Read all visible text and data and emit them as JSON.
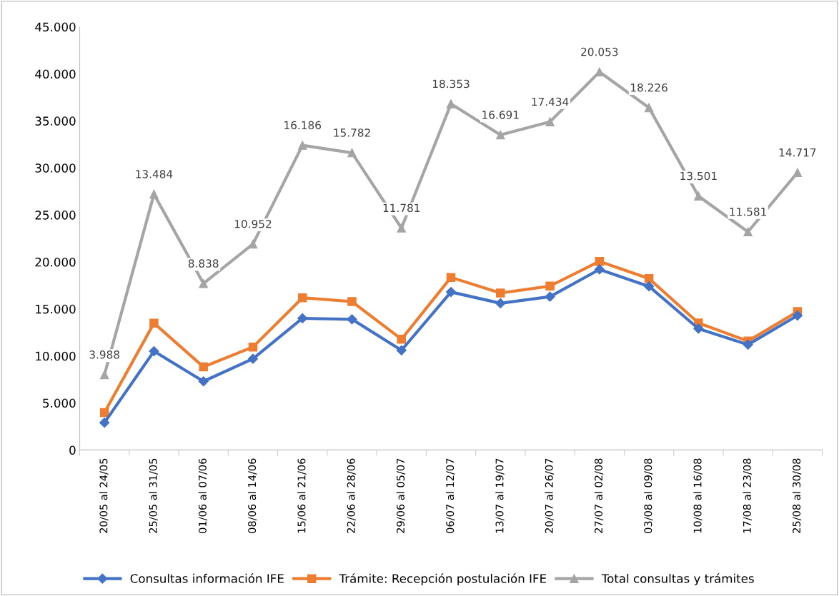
{
  "chart_data": {
    "type": "line",
    "categories": [
      "20/05 al 24/05",
      "25/05 al 31/05",
      "01/06 al 07/06",
      "08/06 al 14/06",
      "15/06 al 21/06",
      "22/06 al 28/06",
      "29/06 al 05/07",
      "06/07 al 12/07",
      "13/07 al 19/07",
      "20/07 al 26/07",
      "27/07 al 02/08",
      "03/08 al 09/08",
      "10/08 al 16/08",
      "17/08 al 23/08",
      "25/08 al 30/08"
    ],
    "series": [
      {
        "name": "Consultas información IFE",
        "color": "#4472c4",
        "marker": "diamond",
        "values": [
          2900,
          10500,
          7300,
          9700,
          14000,
          13900,
          10600,
          16800,
          15600,
          16300,
          19200,
          17400,
          12900,
          11200,
          14300
        ]
      },
      {
        "name": "Trámite: Recepción postulación IFE",
        "color": "#ed7d31",
        "marker": "square",
        "values": [
          3988,
          13484,
          8838,
          10952,
          16186,
          15782,
          11781,
          18353,
          16691,
          17434,
          20053,
          18226,
          13501,
          11581,
          14717
        ]
      },
      {
        "name": "Total consultas y trámites",
        "color": "#a5a5a5",
        "marker": "triangle",
        "values": [
          8000,
          27200,
          17700,
          21900,
          32400,
          31600,
          23600,
          36800,
          33500,
          34900,
          40200,
          36400,
          27000,
          23200,
          29500
        ]
      }
    ],
    "annotations": [
      {
        "text": "3.988",
        "x": "20/05 al 24/05",
        "y": 8000
      },
      {
        "text": "13.484",
        "x": "25/05 al 31/05",
        "y": 27200
      },
      {
        "text": "8.838",
        "x": "01/06 al 07/06",
        "y": 17700
      },
      {
        "text": "10.952",
        "x": "08/06 al 14/06",
        "y": 21900
      },
      {
        "text": "16.186",
        "x": "15/06 al 21/06",
        "y": 32400
      },
      {
        "text": "15.782",
        "x": "22/06 al 28/06",
        "y": 31600
      },
      {
        "text": "11.781",
        "x": "29/06 al 05/07",
        "y": 23600
      },
      {
        "text": "18.353",
        "x": "06/07 al 12/07",
        "y": 36800
      },
      {
        "text": "16.691",
        "x": "13/07 al 19/07",
        "y": 33500
      },
      {
        "text": "17.434",
        "x": "20/07 al 26/07",
        "y": 34900
      },
      {
        "text": "20.053",
        "x": "27/07 al 02/08",
        "y": 40200
      },
      {
        "text": "18.226",
        "x": "03/08 al 09/08",
        "y": 36400
      },
      {
        "text": "13.501",
        "x": "10/08 al 16/08",
        "y": 27000
      },
      {
        "text": "11.581",
        "x": "17/08 al 23/08",
        "y": 23200
      },
      {
        "text": "14.717",
        "x": "25/08 al 30/08",
        "y": 29500
      }
    ],
    "ylim": [
      0,
      45000
    ],
    "yticks": [
      {
        "value": 0,
        "label": "0"
      },
      {
        "value": 5000,
        "label": "5.000"
      },
      {
        "value": 10000,
        "label": "10.000"
      },
      {
        "value": 15000,
        "label": "15.000"
      },
      {
        "value": 20000,
        "label": "20.000"
      },
      {
        "value": 25000,
        "label": "25.000"
      },
      {
        "value": 30000,
        "label": "30.000"
      },
      {
        "value": 35000,
        "label": "35.000"
      },
      {
        "value": 40000,
        "label": "40.000"
      },
      {
        "value": 45000,
        "label": "45.000"
      }
    ],
    "grid": false,
    "legend": "bottom",
    "line_style": "solid"
  }
}
